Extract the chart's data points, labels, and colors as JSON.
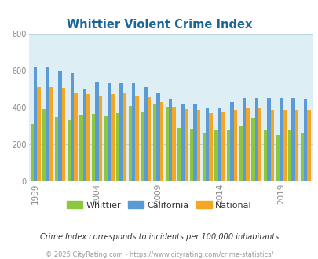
{
  "title": "Whittier Violent Crime Index",
  "title_color": "#1a6699",
  "fig_bg_color": "#ffffff",
  "plot_bg_color": "#ddeef5",
  "years": [
    1999,
    2000,
    2001,
    2002,
    2003,
    2004,
    2005,
    2006,
    2007,
    2008,
    2009,
    2010,
    2011,
    2012,
    2013,
    2014,
    2015,
    2016,
    2017,
    2018,
    2019,
    2020,
    2021
  ],
  "whittier": [
    310,
    390,
    350,
    330,
    360,
    365,
    355,
    370,
    410,
    375,
    415,
    405,
    290,
    285,
    260,
    275,
    275,
    300,
    345,
    275,
    250,
    275,
    260
  ],
  "california": [
    620,
    615,
    595,
    585,
    500,
    535,
    530,
    530,
    530,
    510,
    480,
    445,
    415,
    420,
    400,
    400,
    430,
    450,
    450,
    450,
    450,
    450,
    445
  ],
  "national": [
    510,
    510,
    505,
    475,
    470,
    465,
    470,
    475,
    465,
    455,
    430,
    405,
    390,
    385,
    370,
    375,
    385,
    395,
    395,
    385,
    385,
    385,
    385
  ],
  "whittier_color": "#8dc63f",
  "california_color": "#5b9bd5",
  "national_color": "#f5a623",
  "ylim": [
    0,
    800
  ],
  "yticks": [
    0,
    200,
    400,
    600,
    800
  ],
  "xtick_years": [
    1999,
    2004,
    2009,
    2014,
    2019
  ],
  "footnote": "Crime Index corresponds to incidents per 100,000 inhabitants",
  "copyright": "© 2025 CityRating.com - https://www.cityrating.com/crime-statistics/",
  "legend_labels": [
    "Whittier",
    "California",
    "National"
  ],
  "bar_width": 0.28,
  "grid_color": "#b8d4e0"
}
